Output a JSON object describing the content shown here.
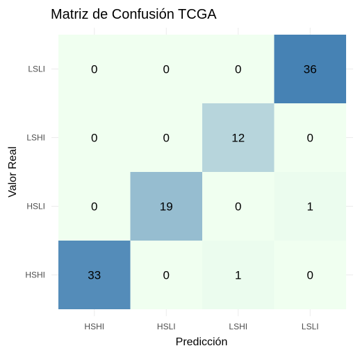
{
  "chart_data": {
    "type": "heatmap",
    "title": "Matriz de Confusión TCGA",
    "xlabel": "Predicción",
    "ylabel": "Valor Real",
    "x_categories": [
      "HSHI",
      "HSLI",
      "LSHI",
      "LSLI"
    ],
    "y_categories": [
      "HSHI",
      "HSLI",
      "LSHI",
      "LSLI"
    ],
    "cells": [
      {
        "real": "HSHI",
        "pred": "HSHI",
        "value": 33
      },
      {
        "real": "HSHI",
        "pred": "HSLI",
        "value": 0
      },
      {
        "real": "HSHI",
        "pred": "LSHI",
        "value": 1
      },
      {
        "real": "HSHI",
        "pred": "LSLI",
        "value": 0
      },
      {
        "real": "HSLI",
        "pred": "HSHI",
        "value": 0
      },
      {
        "real": "HSLI",
        "pred": "HSLI",
        "value": 19
      },
      {
        "real": "HSLI",
        "pred": "LSHI",
        "value": 0
      },
      {
        "real": "HSLI",
        "pred": "LSLI",
        "value": 1
      },
      {
        "real": "LSHI",
        "pred": "HSHI",
        "value": 0
      },
      {
        "real": "LSHI",
        "pred": "HSLI",
        "value": 0
      },
      {
        "real": "LSHI",
        "pred": "LSHI",
        "value": 12
      },
      {
        "real": "LSHI",
        "pred": "LSLI",
        "value": 0
      },
      {
        "real": "LSLI",
        "pred": "HSHI",
        "value": 0
      },
      {
        "real": "LSLI",
        "pred": "HSLI",
        "value": 0
      },
      {
        "real": "LSLI",
        "pred": "LSHI",
        "value": 0
      },
      {
        "real": "LSLI",
        "pred": "LSLI",
        "value": 36
      }
    ],
    "color_low": "#f0fff0",
    "color_high": "#4682b4",
    "value_range": [
      0,
      36
    ],
    "legend": "none"
  }
}
